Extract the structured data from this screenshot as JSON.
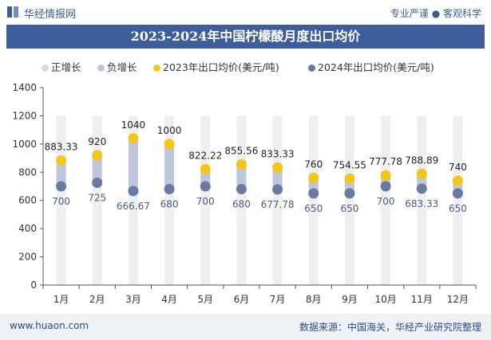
{
  "header": {
    "site_name": "华经情报网",
    "tagline": "专业严谨 ● 客观科学"
  },
  "colors": {
    "title_bg": "#3d5d9c",
    "positive_bar": "#d9d9d9",
    "negative_bar": "#bfc6dc",
    "series_2023": "#f5c518",
    "series_2024": "#6a7aa0"
  },
  "chart_data": {
    "type": "line",
    "title": "2023-2024年中国柠檬酸月度出口均价",
    "categories": [
      "1月",
      "2月",
      "3月",
      "4月",
      "5月",
      "6月",
      "7月",
      "8月",
      "9月",
      "10月",
      "11月",
      "12月"
    ],
    "series": [
      {
        "name": "2023年出口均价(美元/吨)",
        "values": [
          883.33,
          920,
          1040,
          1000,
          822.22,
          855.56,
          833.33,
          760,
          754.55,
          777.78,
          788.89,
          740
        ],
        "labels": [
          "883.33",
          "920",
          "1040",
          "1000",
          "822.22",
          "855.56",
          "833.33",
          "760",
          "754.55",
          "777.78",
          "788.89",
          "740"
        ]
      },
      {
        "name": "2024年出口均价(美元/吨)",
        "values": [
          700,
          725,
          666.67,
          680,
          700,
          680,
          677.78,
          650,
          650,
          700,
          683.33,
          650
        ],
        "labels": [
          "700",
          "725",
          "666.67",
          "680",
          "700",
          "680",
          "677.78",
          "650",
          "650",
          "700",
          "683.33",
          "650"
        ]
      }
    ],
    "bar_legend": [
      "正增长",
      "负增长"
    ],
    "ylim": [
      0,
      1400
    ],
    "yticks": [
      0,
      200,
      400,
      600,
      800,
      1000,
      1200,
      1400
    ],
    "ytick_labels": [
      "0",
      "200",
      "400",
      "600",
      "800",
      "1000",
      "1200",
      "1400"
    ],
    "grid": false,
    "legend_position": "top"
  },
  "footer": {
    "url": "www.huaon.com",
    "source": "数据来源：中国海关，华经产业研究院整理"
  }
}
